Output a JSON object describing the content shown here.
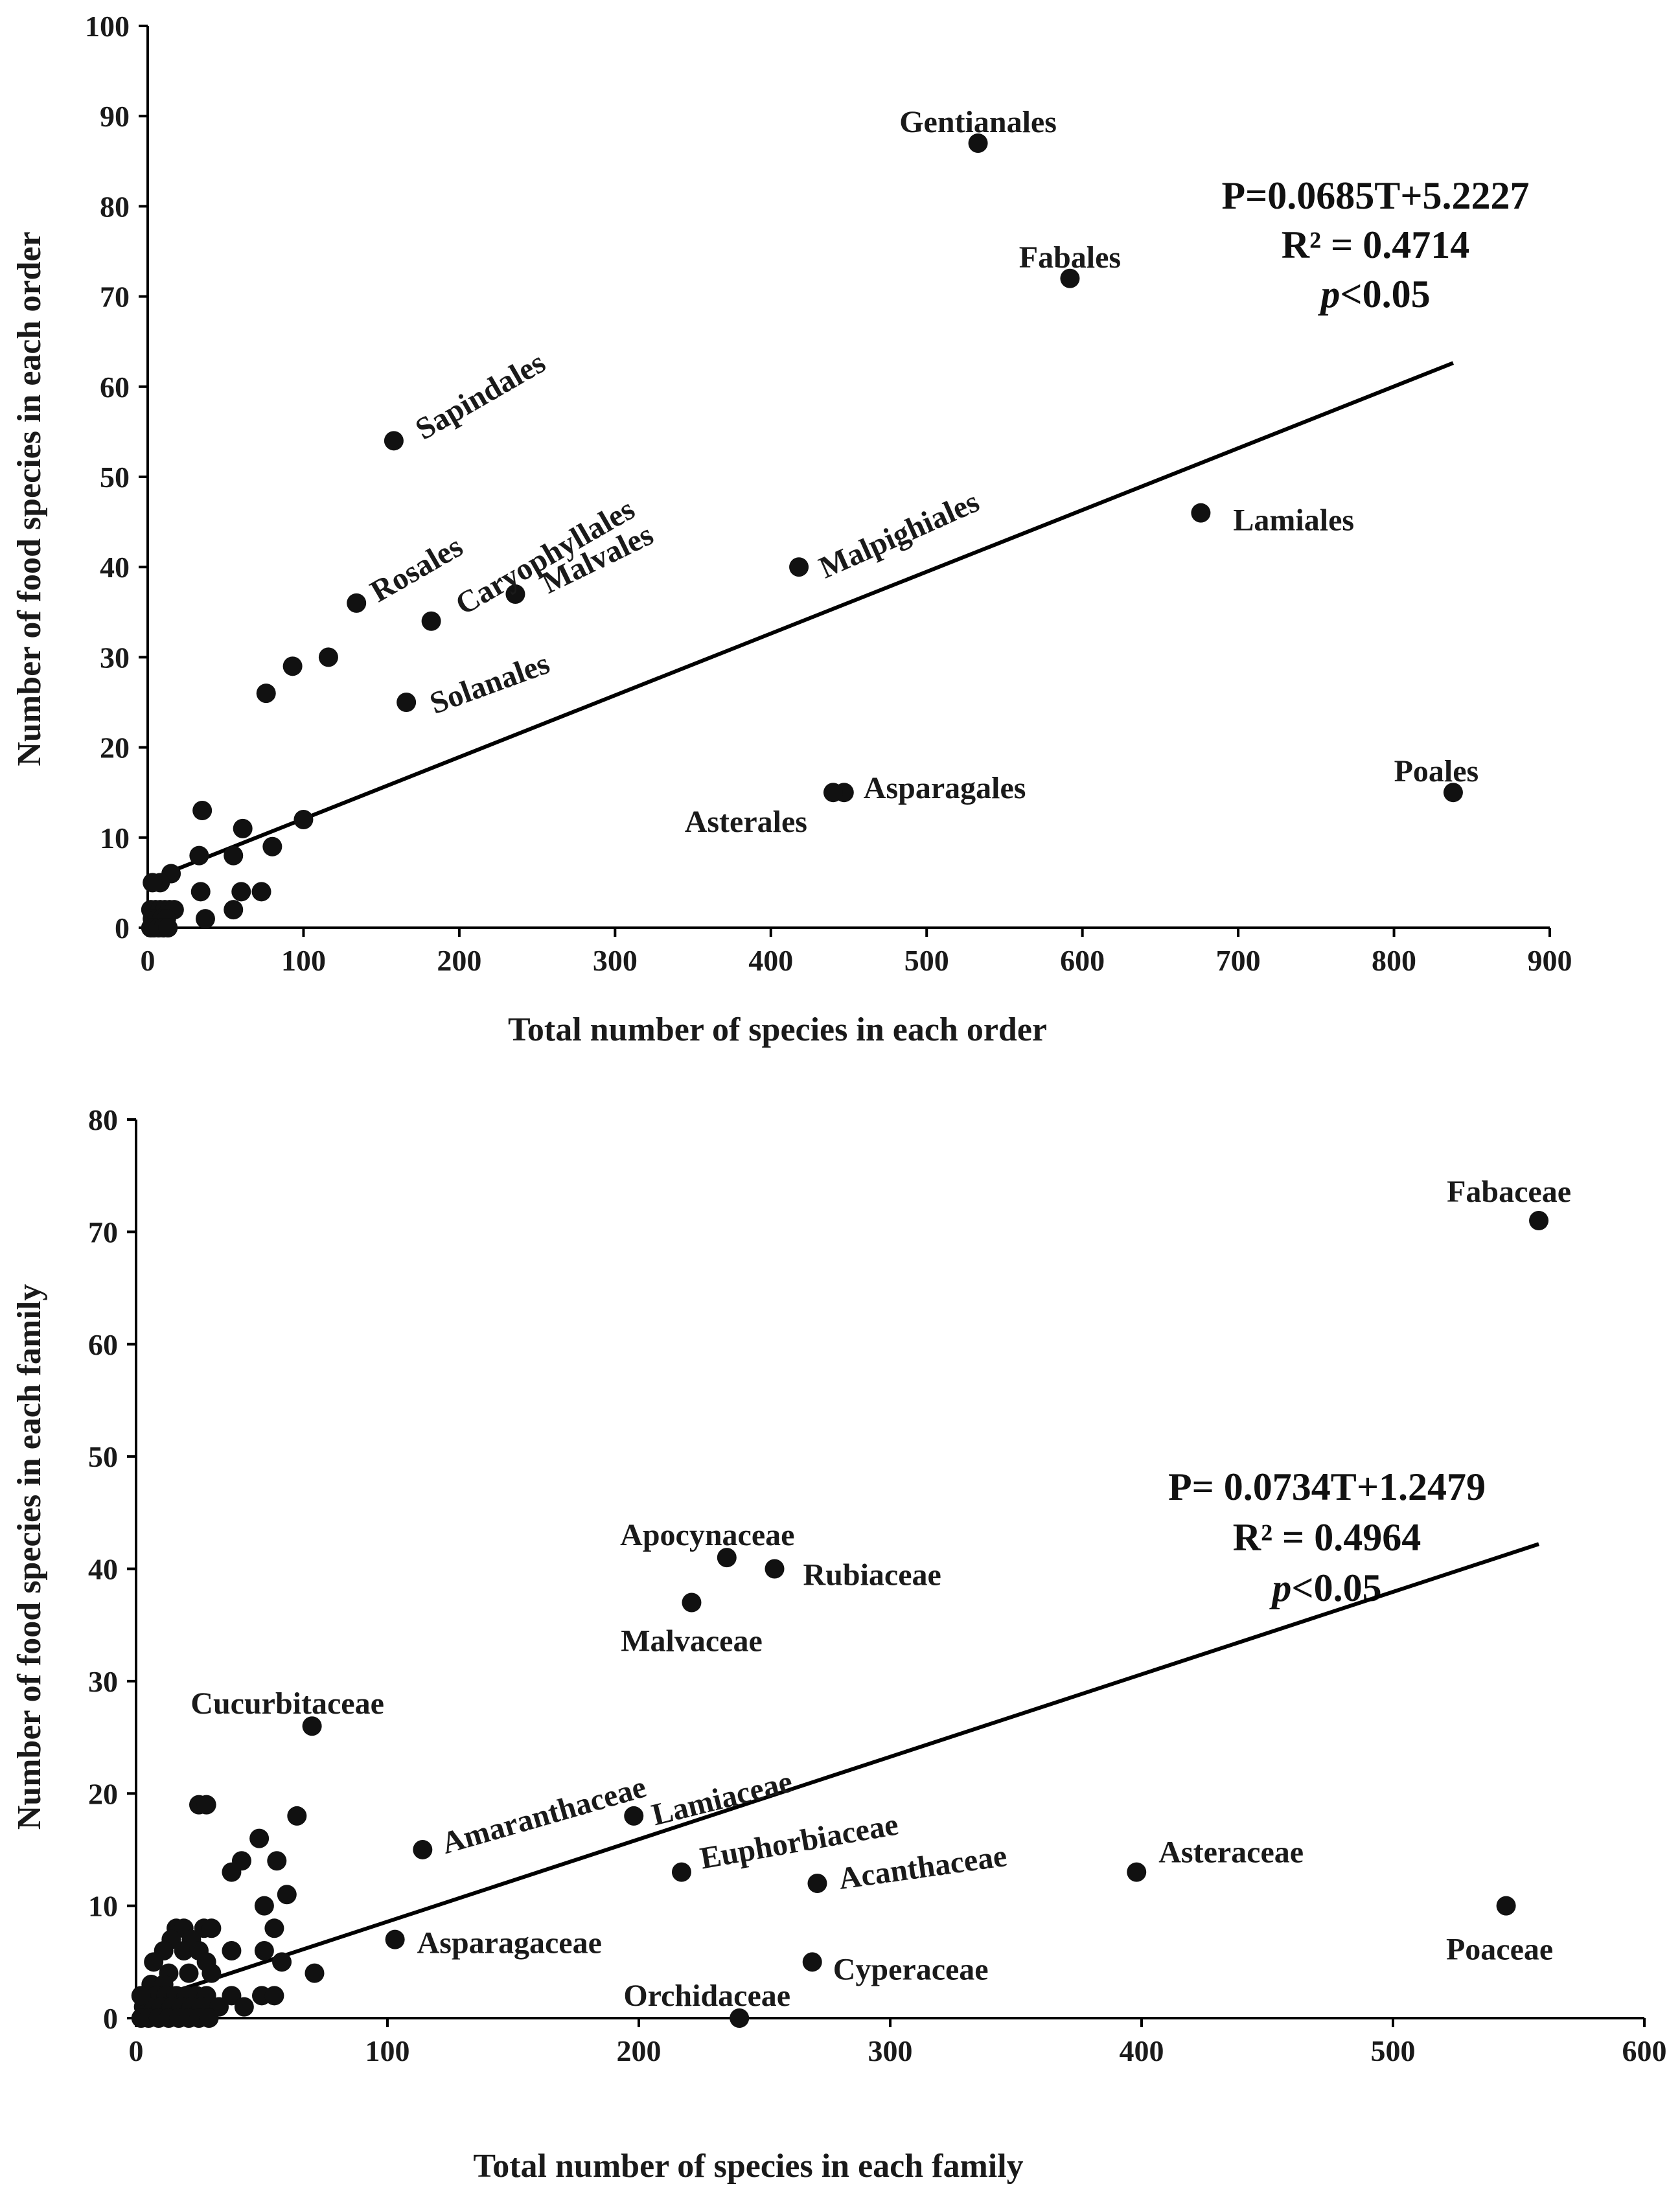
{
  "chart_data": [
    {
      "type": "scatter",
      "xlabel": "Total number of species in each order",
      "ylabel": "Number of food species in each order",
      "xlim": [
        0,
        900
      ],
      "ylim": [
        0,
        100
      ],
      "xticks": [
        0,
        100,
        200,
        300,
        400,
        500,
        600,
        700,
        800,
        900
      ],
      "yticks": [
        0,
        10,
        20,
        30,
        40,
        50,
        60,
        70,
        80,
        90,
        100
      ],
      "trendline": {
        "x1": 10,
        "x2": 838,
        "slope": 0.0685,
        "intercept": 5.2227
      },
      "equation": {
        "line1": "P=0.0685T+5.2227",
        "line2": "R² = 0.4714",
        "p_italic": "p",
        "p_rest": "<0.05"
      },
      "labeled_points": [
        {
          "name": "Gentianales",
          "x": 533,
          "y": 87
        },
        {
          "name": "Fabales",
          "x": 592,
          "y": 72
        },
        {
          "name": "Sapindales",
          "x": 158,
          "y": 54
        },
        {
          "name": "Lamiales",
          "x": 676,
          "y": 46
        },
        {
          "name": "Malpighiales",
          "x": 418,
          "y": 40
        },
        {
          "name": "Malvales",
          "x": 236,
          "y": 37
        },
        {
          "name": "Rosales",
          "x": 134,
          "y": 36
        },
        {
          "name": "Caryophyllales",
          "x": 182,
          "y": 34
        },
        {
          "name": "Solanales",
          "x": 166,
          "y": 25
        },
        {
          "name": "Asparagales",
          "x": 447,
          "y": 15
        },
        {
          "name": "Asterales",
          "x": 440,
          "y": 15
        },
        {
          "name": "Poales",
          "x": 838,
          "y": 15
        }
      ],
      "points": [
        [
          116,
          30
        ],
        [
          93,
          29
        ],
        [
          76,
          26
        ],
        [
          35,
          13
        ],
        [
          100,
          12
        ],
        [
          61,
          11
        ],
        [
          80,
          9
        ],
        [
          33,
          8
        ],
        [
          55,
          8
        ],
        [
          15,
          6
        ],
        [
          8,
          5
        ],
        [
          3,
          5
        ],
        [
          34,
          4
        ],
        [
          60,
          4
        ],
        [
          73,
          4
        ],
        [
          55,
          2
        ],
        [
          37,
          1
        ],
        [
          2,
          2
        ],
        [
          5,
          2
        ],
        [
          8,
          2
        ],
        [
          11,
          2
        ],
        [
          14,
          2
        ],
        [
          17,
          2
        ],
        [
          3,
          1
        ],
        [
          6,
          1
        ],
        [
          9,
          1
        ],
        [
          12,
          1
        ],
        [
          2,
          0
        ],
        [
          4,
          0
        ],
        [
          7,
          0
        ],
        [
          10,
          0
        ],
        [
          13,
          0
        ]
      ]
    },
    {
      "type": "scatter",
      "xlabel": "Total number of species in each family",
      "ylabel": "Number of food species in each family",
      "xlim": [
        0,
        600
      ],
      "ylim": [
        0,
        80
      ],
      "xticks": [
        0,
        100,
        200,
        300,
        400,
        500,
        600
      ],
      "yticks": [
        0,
        10,
        20,
        30,
        40,
        50,
        60,
        70,
        80
      ],
      "trendline": {
        "x1": 10,
        "x2": 558,
        "slope": 0.0734,
        "intercept": 1.2479
      },
      "equation": {
        "line1": "P= 0.0734T+1.2479",
        "line2": "R² = 0.4964",
        "p_italic": "p",
        "p_rest": "<0.05"
      },
      "labeled_points": [
        {
          "name": "Fabaceae",
          "x": 558,
          "y": 71
        },
        {
          "name": "Apocynaceae",
          "x": 235,
          "y": 41
        },
        {
          "name": "Rubiaceae",
          "x": 254,
          "y": 40
        },
        {
          "name": "Malvaceae",
          "x": 221,
          "y": 37
        },
        {
          "name": "Cucurbitaceae",
          "x": 70,
          "y": 26
        },
        {
          "name": "Lamiaceae",
          "x": 198,
          "y": 18
        },
        {
          "name": "Amaranthaceae",
          "x": 114,
          "y": 15
        },
        {
          "name": "Euphorbiaceae",
          "x": 217,
          "y": 13
        },
        {
          "name": "Asteraceae",
          "x": 398,
          "y": 13
        },
        {
          "name": "Acanthaceae",
          "x": 271,
          "y": 12
        },
        {
          "name": "Poaceae",
          "x": 545,
          "y": 10
        },
        {
          "name": "Asparagaceae",
          "x": 103,
          "y": 7
        },
        {
          "name": "Cyperaceae",
          "x": 269,
          "y": 5
        },
        {
          "name": "Orchidaceae",
          "x": 240,
          "y": 0
        }
      ],
      "points": [
        [
          25,
          19
        ],
        [
          28,
          19
        ],
        [
          64,
          18
        ],
        [
          49,
          16
        ],
        [
          42,
          14
        ],
        [
          56,
          14
        ],
        [
          38,
          13
        ],
        [
          60,
          11
        ],
        [
          51,
          10
        ],
        [
          16,
          8
        ],
        [
          19,
          8
        ],
        [
          27,
          8
        ],
        [
          30,
          8
        ],
        [
          14,
          7
        ],
        [
          22,
          7
        ],
        [
          11,
          6
        ],
        [
          19,
          6
        ],
        [
          25,
          6
        ],
        [
          38,
          6
        ],
        [
          51,
          6
        ],
        [
          7,
          5
        ],
        [
          28,
          5
        ],
        [
          58,
          5
        ],
        [
          55,
          8
        ],
        [
          13,
          4
        ],
        [
          21,
          4
        ],
        [
          30,
          4
        ],
        [
          71,
          4
        ],
        [
          6,
          3
        ],
        [
          11,
          3
        ],
        [
          4,
          2
        ],
        [
          8,
          2
        ],
        [
          12,
          2
        ],
        [
          16,
          2
        ],
        [
          20,
          2
        ],
        [
          24,
          2
        ],
        [
          28,
          2
        ],
        [
          38,
          2
        ],
        [
          50,
          2
        ],
        [
          55,
          2
        ],
        [
          3,
          1
        ],
        [
          7,
          1
        ],
        [
          10,
          1
        ],
        [
          14,
          1
        ],
        [
          18,
          1
        ],
        [
          22,
          1
        ],
        [
          26,
          1
        ],
        [
          33,
          1
        ],
        [
          43,
          1
        ],
        [
          2,
          0
        ],
        [
          5,
          0
        ],
        [
          9,
          0
        ],
        [
          13,
          0
        ],
        [
          17,
          0
        ],
        [
          21,
          0
        ],
        [
          25,
          0
        ],
        [
          29,
          0
        ],
        [
          2,
          2
        ]
      ]
    }
  ]
}
